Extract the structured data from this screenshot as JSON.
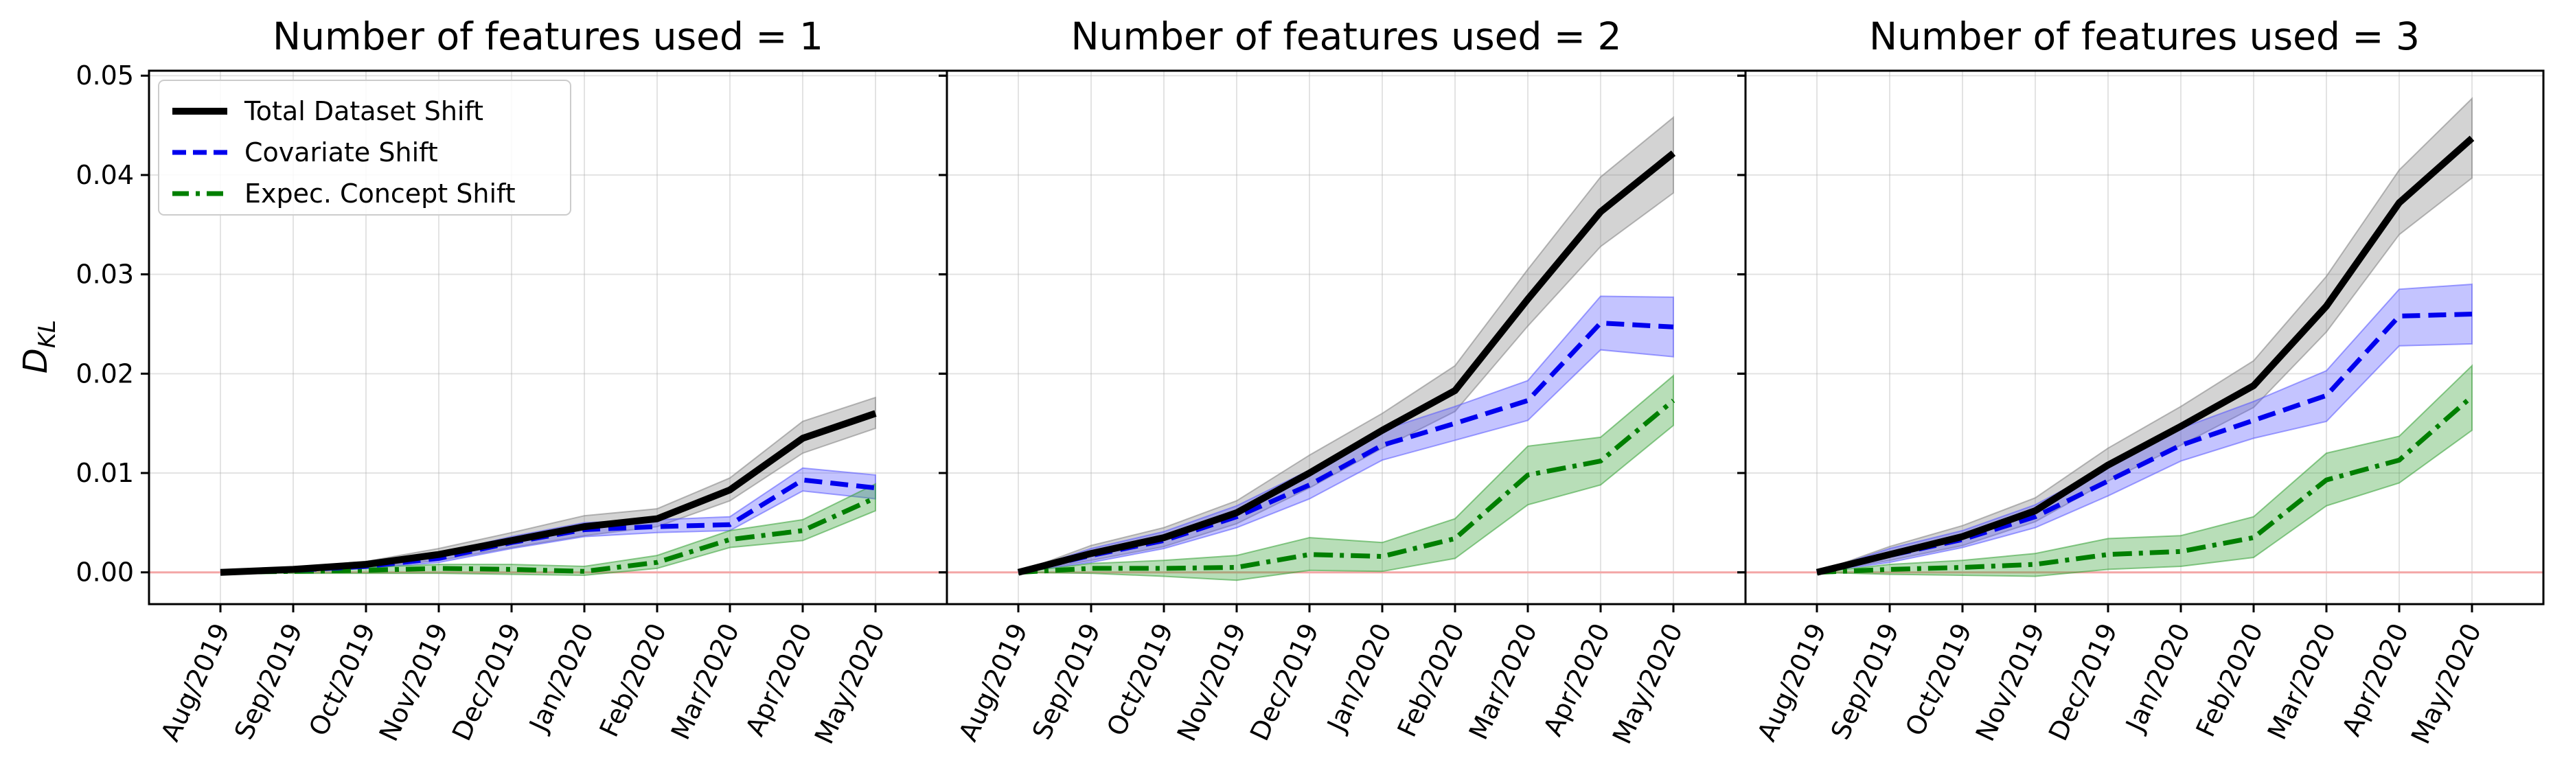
{
  "chart_data": {
    "type": "line",
    "ylabel": "D",
    "ylabel_sub": "KL",
    "ylim": [
      -0.0032,
      0.0505
    ],
    "yticks": [
      0.0,
      0.01,
      0.02,
      0.03,
      0.04,
      0.05
    ],
    "ytick_labels": [
      "0.00",
      "0.01",
      "0.02",
      "0.03",
      "0.04",
      "0.05"
    ],
    "categories": [
      "Aug/2019",
      "Sep/2019",
      "Oct/2019",
      "Nov/2019",
      "Dec/2019",
      "Jan/2020",
      "Feb/2020",
      "Mar/2020",
      "Apr/2020",
      "May/2020"
    ],
    "grid": true,
    "reference_line": {
      "y": 0,
      "color": "#f4a6a6"
    },
    "legend": {
      "placement": "upper-left",
      "panel": 0,
      "entries": [
        "Total Dataset Shift",
        "Covariate Shift",
        "Expec. Concept Shift"
      ]
    },
    "series_styles": [
      {
        "name": "Total Dataset Shift",
        "color": "#000000",
        "band_color": "#808080",
        "dash": "solid"
      },
      {
        "name": "Covariate Shift",
        "color": "#0000ee",
        "band_color": "#5555ff",
        "dash": "dashed"
      },
      {
        "name": "Expec. Concept Shift",
        "color": "#007f00",
        "band_color": "#33a033",
        "dash": "dashdot"
      }
    ],
    "panels": [
      {
        "title": "Number of features used = 1",
        "series": [
          {
            "name": "Total Dataset Shift",
            "values": [
              0.0,
              0.0003,
              0.0008,
              0.0018,
              0.0032,
              0.0046,
              0.0054,
              0.0083,
              0.0135,
              0.016
            ],
            "lower": [
              0.0,
              0.0001,
              0.0005,
              0.0012,
              0.0025,
              0.0037,
              0.0046,
              0.0072,
              0.012,
              0.0145
            ],
            "upper": [
              0.0,
              0.0005,
              0.0011,
              0.0024,
              0.004,
              0.0057,
              0.0064,
              0.0095,
              0.0152,
              0.0176
            ]
          },
          {
            "name": "Covariate Shift",
            "values": [
              0.0,
              0.0002,
              0.0006,
              0.0014,
              0.003,
              0.0043,
              0.0046,
              0.0048,
              0.0093,
              0.0085
            ],
            "lower": [
              0.0,
              0.0001,
              0.0004,
              0.001,
              0.0024,
              0.0036,
              0.004,
              0.0042,
              0.0082,
              0.0074
            ],
            "upper": [
              0.0,
              0.0004,
              0.0009,
              0.0019,
              0.0036,
              0.005,
              0.0053,
              0.0056,
              0.0105,
              0.0098
            ]
          },
          {
            "name": "Expec. Concept Shift",
            "values": [
              0.0,
              0.0001,
              0.0002,
              0.0004,
              0.0003,
              0.0001,
              0.001,
              0.0033,
              0.0042,
              0.0075
            ],
            "lower": [
              0.0,
              -0.0001,
              -0.0001,
              -0.0001,
              -0.0002,
              -0.0003,
              0.0004,
              0.0025,
              0.0032,
              0.0062
            ],
            "upper": [
              0.0,
              0.0003,
              0.0005,
              0.0008,
              0.0008,
              0.0006,
              0.0017,
              0.0042,
              0.0053,
              0.0089
            ]
          }
        ]
      },
      {
        "title": "Number of features used = 2",
        "series": [
          {
            "name": "Total Dataset Shift",
            "values": [
              0.0,
              0.0019,
              0.0035,
              0.006,
              0.01,
              0.0143,
              0.0183,
              0.0275,
              0.0363,
              0.0422
            ],
            "lower": [
              0.0,
              0.0012,
              0.0026,
              0.0049,
              0.0085,
              0.0125,
              0.0162,
              0.0248,
              0.0328,
              0.0382
            ],
            "upper": [
              0.0,
              0.0027,
              0.0045,
              0.0072,
              0.0118,
              0.016,
              0.0208,
              0.0305,
              0.0398,
              0.0458
            ]
          },
          {
            "name": "Covariate Shift",
            "values": [
              0.0,
              0.0017,
              0.0032,
              0.0056,
              0.0088,
              0.0128,
              0.015,
              0.0173,
              0.0251,
              0.0247
            ],
            "lower": [
              0.0,
              0.001,
              0.0024,
              0.0045,
              0.0074,
              0.0113,
              0.0133,
              0.0153,
              0.0224,
              0.0217
            ],
            "upper": [
              0.0,
              0.0024,
              0.0041,
              0.0067,
              0.0103,
              0.0143,
              0.0167,
              0.0193,
              0.0278,
              0.0277
            ]
          },
          {
            "name": "Expec. Concept Shift",
            "values": [
              0.0,
              0.0004,
              0.0004,
              0.0005,
              0.0018,
              0.0016,
              0.0034,
              0.0098,
              0.0112,
              0.0173
            ],
            "lower": [
              0.0,
              -0.0001,
              -0.0004,
              -0.0008,
              0.0002,
              0.0001,
              0.0014,
              0.0068,
              0.0088,
              0.0148
            ],
            "upper": [
              0.0,
              0.0009,
              0.0012,
              0.0017,
              0.0035,
              0.003,
              0.0054,
              0.0127,
              0.0136,
              0.0198
            ]
          }
        ]
      },
      {
        "title": "Number of features used = 3",
        "series": [
          {
            "name": "Total Dataset Shift",
            "values": [
              0.0,
              0.0018,
              0.0036,
              0.0062,
              0.0108,
              0.0147,
              0.0188,
              0.0268,
              0.0372,
              0.0437
            ],
            "lower": [
              0.0,
              0.0012,
              0.0027,
              0.0051,
              0.0092,
              0.0128,
              0.0166,
              0.0242,
              0.034,
              0.0397
            ],
            "upper": [
              0.0,
              0.0026,
              0.0047,
              0.0075,
              0.0125,
              0.0167,
              0.0213,
              0.0298,
              0.0405,
              0.0477
            ]
          },
          {
            "name": "Covariate Shift",
            "values": [
              0.0,
              0.0017,
              0.0033,
              0.0056,
              0.0092,
              0.0128,
              0.0153,
              0.0178,
              0.0258,
              0.026
            ],
            "lower": [
              0.0,
              0.001,
              0.0025,
              0.0045,
              0.0077,
              0.0112,
              0.0135,
              0.0152,
              0.0228,
              0.023
            ],
            "upper": [
              0.0,
              0.0024,
              0.0042,
              0.0068,
              0.0107,
              0.0145,
              0.0172,
              0.0203,
              0.0285,
              0.029
            ]
          },
          {
            "name": "Expec. Concept Shift",
            "values": [
              0.0,
              0.0003,
              0.0005,
              0.0008,
              0.0018,
              0.0021,
              0.0035,
              0.0093,
              0.0113,
              0.0177
            ],
            "lower": [
              0.0,
              -0.0002,
              -0.0003,
              -0.0004,
              0.0003,
              0.0006,
              0.0015,
              0.0067,
              0.009,
              0.0143
            ],
            "upper": [
              0.0,
              0.0008,
              0.0012,
              0.0019,
              0.0034,
              0.0037,
              0.0056,
              0.012,
              0.0137,
              0.0208
            ]
          }
        ]
      }
    ]
  }
}
